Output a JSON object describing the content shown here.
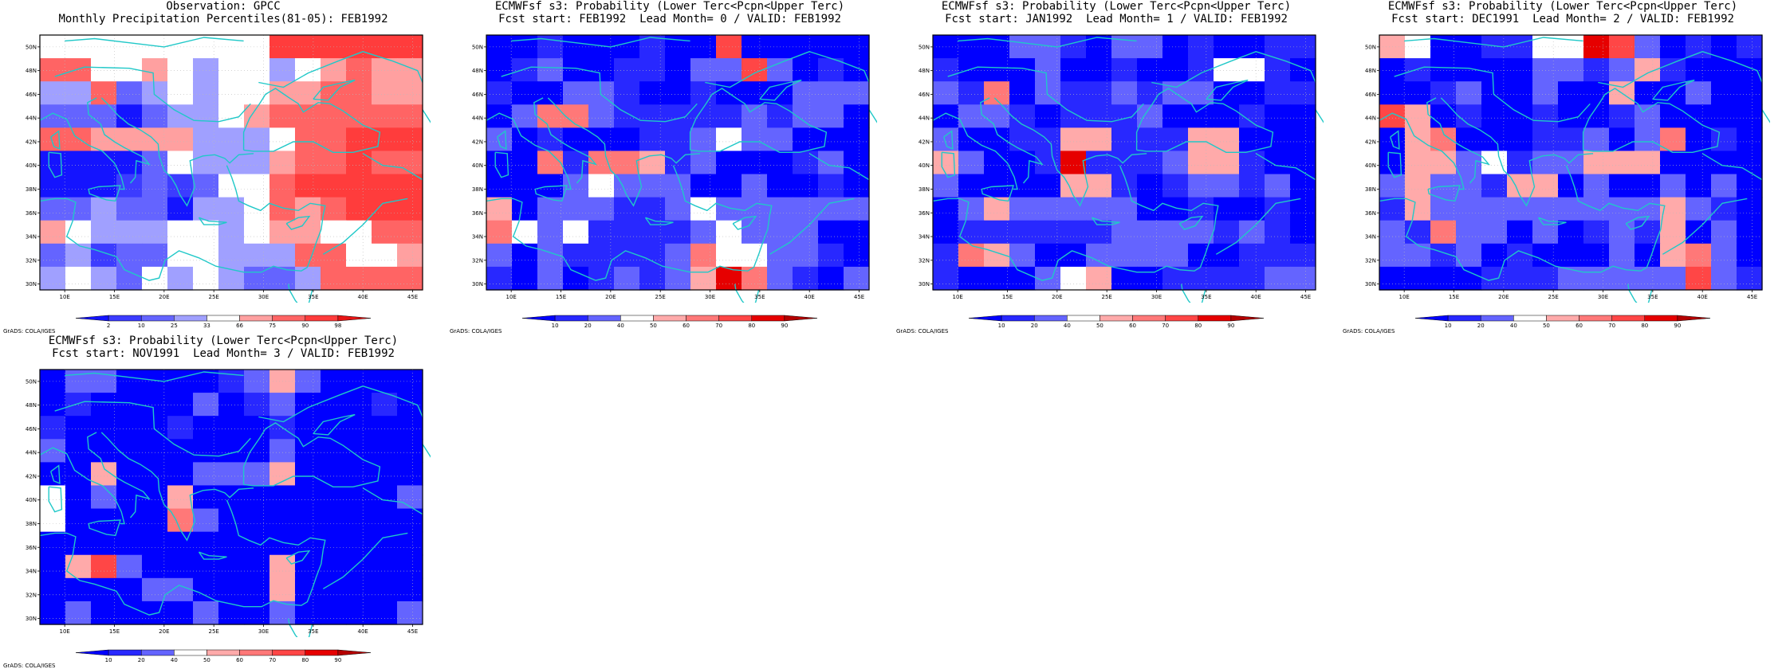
{
  "credit_text": "GrADS: COLA/IGES",
  "colors": {
    "coast": "#20c8c8",
    "grid": "#bbbbbb",
    "obs_palette": [
      "#1414ff",
      "#3c3cff",
      "#6464ff",
      "#a0a0ff",
      "#ffffff",
      "#ffa0a0",
      "#ff6464",
      "#ff3c3c",
      "#e61414"
    ],
    "prob_palette": [
      "#0000ff",
      "#2828ff",
      "#6464ff",
      "#ffffff",
      "#ffaaaa",
      "#ff7878",
      "#ff4646",
      "#e60000",
      "#b40000"
    ]
  },
  "chart_data": [
    {
      "type": "heatmap",
      "title_line1": "Observation: GPCC",
      "title_line2": "Monthly Precipitation Percentiles(81-05): FEB1992",
      "x_ticks": [
        "10E",
        "15E",
        "20E",
        "25E",
        "30E",
        "35E",
        "40E",
        "45E"
      ],
      "y_ticks": [
        "30N",
        "32N",
        "34N",
        "36N",
        "38N",
        "40N",
        "42N",
        "44N",
        "46N",
        "48N",
        "50N"
      ],
      "xlim": [
        7.5,
        46
      ],
      "ylim": [
        29.5,
        51
      ],
      "grid": true,
      "colorbar_ticks": [
        "2",
        "10",
        "25",
        "33",
        "66",
        "75",
        "90",
        "98"
      ],
      "palette": "obs",
      "grid_values": [
        [
          5,
          5,
          5,
          5,
          5,
          5,
          5,
          5,
          5,
          8,
          8,
          8,
          8,
          8,
          8
        ],
        [
          7,
          7,
          5,
          5,
          6,
          5,
          4,
          5,
          5,
          4,
          5,
          6,
          7,
          6,
          6
        ],
        [
          4,
          4,
          7,
          3,
          4,
          5,
          4,
          5,
          5,
          6,
          6,
          7,
          7,
          6,
          6
        ],
        [
          3,
          3,
          3,
          1,
          3,
          4,
          4,
          5,
          6,
          7,
          7,
          7,
          7,
          7,
          7
        ],
        [
          7,
          7,
          6,
          6,
          6,
          6,
          4,
          4,
          4,
          5,
          7,
          7,
          8,
          8,
          8
        ],
        [
          1,
          1,
          1,
          1,
          3,
          5,
          4,
          4,
          4,
          6,
          7,
          7,
          8,
          7,
          7
        ],
        [
          1,
          1,
          1,
          2,
          3,
          2,
          3,
          5,
          5,
          7,
          8,
          8,
          8,
          8,
          8
        ],
        [
          3,
          3,
          4,
          3,
          3,
          1,
          4,
          4,
          5,
          7,
          6,
          7,
          8,
          8,
          8
        ],
        [
          6,
          5,
          4,
          4,
          4,
          5,
          5,
          4,
          5,
          6,
          6,
          5,
          5,
          7,
          7
        ],
        [
          3,
          4,
          2,
          3,
          3,
          5,
          5,
          4,
          4,
          4,
          7,
          7,
          5,
          5,
          6
        ],
        [
          4,
          5,
          4,
          3,
          5,
          4,
          5,
          4,
          3,
          3,
          4,
          7,
          7,
          7,
          7
        ]
      ]
    },
    {
      "type": "heatmap",
      "title_line1": "ECMWFsf s3: Probability (Lower Terc<Pcpn<Upper Terc)",
      "title_line2": "Fcst start: FEB1992  Lead Month= 0 / VALID: FEB1992",
      "x_ticks": [
        "10E",
        "15E",
        "20E",
        "25E",
        "30E",
        "35E",
        "40E",
        "45E"
      ],
      "y_ticks": [
        "30N",
        "32N",
        "34N",
        "36N",
        "38N",
        "40N",
        "42N",
        "44N",
        "46N",
        "48N",
        "50N"
      ],
      "xlim": [
        7.5,
        46
      ],
      "ylim": [
        29.5,
        51
      ],
      "grid": true,
      "colorbar_ticks": [
        "10",
        "20",
        "40",
        "50",
        "60",
        "70",
        "80",
        "90"
      ],
      "palette": "prob",
      "grid_values": [
        [
          1,
          1,
          2,
          1,
          1,
          1,
          2,
          1,
          1,
          7,
          1,
          1,
          1,
          1,
          1
        ],
        [
          1,
          2,
          3,
          1,
          1,
          2,
          2,
          1,
          3,
          3,
          7,
          3,
          1,
          2,
          1
        ],
        [
          2,
          1,
          1,
          3,
          3,
          2,
          1,
          1,
          2,
          1,
          1,
          1,
          3,
          3,
          3
        ],
        [
          1,
          3,
          6,
          6,
          3,
          2,
          2,
          2,
          2,
          2,
          3,
          2,
          3,
          3,
          1
        ],
        [
          3,
          1,
          2,
          1,
          1,
          1,
          2,
          2,
          3,
          4,
          3,
          3,
          1,
          1,
          1
        ],
        [
          1,
          1,
          6,
          2,
          6,
          6,
          5,
          2,
          3,
          1,
          1,
          1,
          2,
          3,
          1
        ],
        [
          1,
          1,
          1,
          3,
          4,
          3,
          3,
          3,
          1,
          1,
          3,
          1,
          1,
          2,
          1
        ],
        [
          5,
          1,
          3,
          3,
          3,
          2,
          2,
          3,
          4,
          3,
          3,
          3,
          3,
          3,
          3
        ],
        [
          6,
          4,
          3,
          4,
          2,
          2,
          2,
          2,
          3,
          4,
          3,
          3,
          3,
          1,
          1
        ],
        [
          3,
          1,
          3,
          2,
          2,
          2,
          2,
          3,
          6,
          4,
          4,
          3,
          3,
          2,
          1
        ],
        [
          2,
          1,
          3,
          1,
          2,
          3,
          2,
          3,
          5,
          8,
          6,
          3,
          2,
          1,
          3
        ]
      ]
    },
    {
      "type": "heatmap",
      "title_line1": "ECMWFsf s3: Probability (Lower Terc<Pcpn<Upper Terc)",
      "title_line2": "Fcst start: JAN1992  Lead Month= 1 / VALID: FEB1992",
      "x_ticks": [
        "10E",
        "15E",
        "20E",
        "25E",
        "30E",
        "35E",
        "40E",
        "45E"
      ],
      "y_ticks": [
        "30N",
        "32N",
        "34N",
        "36N",
        "38N",
        "40N",
        "42N",
        "44N",
        "46N",
        "48N",
        "50N"
      ],
      "xlim": [
        7.5,
        46
      ],
      "ylim": [
        29.5,
        51
      ],
      "grid": true,
      "colorbar_ticks": [
        "10",
        "20",
        "40",
        "50",
        "60",
        "70",
        "80",
        "90"
      ],
      "palette": "prob",
      "grid_values": [
        [
          1,
          1,
          1,
          3,
          3,
          2,
          1,
          3,
          3,
          1,
          2,
          1,
          1,
          2,
          2
        ],
        [
          2,
          1,
          1,
          1,
          3,
          1,
          1,
          2,
          1,
          1,
          2,
          4,
          4,
          2,
          1
        ],
        [
          3,
          2,
          6,
          1,
          3,
          2,
          2,
          3,
          2,
          3,
          3,
          1,
          1,
          2,
          2
        ],
        [
          1,
          3,
          3,
          2,
          1,
          2,
          2,
          2,
          3,
          1,
          1,
          1,
          2,
          1,
          1
        ],
        [
          3,
          1,
          1,
          2,
          2,
          5,
          5,
          2,
          2,
          2,
          5,
          5,
          1,
          1,
          1
        ],
        [
          5,
          3,
          1,
          1,
          2,
          8,
          2,
          2,
          2,
          3,
          5,
          5,
          2,
          1,
          1
        ],
        [
          3,
          1,
          1,
          1,
          1,
          5,
          5,
          2,
          1,
          2,
          3,
          3,
          2,
          3,
          1
        ],
        [
          1,
          3,
          5,
          3,
          3,
          3,
          3,
          3,
          1,
          1,
          2,
          1,
          1,
          2,
          1
        ],
        [
          1,
          2,
          2,
          2,
          2,
          2,
          2,
          3,
          3,
          3,
          3,
          2,
          3,
          2,
          1
        ],
        [
          2,
          6,
          5,
          3,
          1,
          1,
          3,
          3,
          3,
          3,
          1,
          1,
          2,
          2,
          2
        ],
        [
          2,
          1,
          1,
          1,
          3,
          4,
          5,
          1,
          1,
          2,
          2,
          2,
          2,
          3,
          3
        ]
      ]
    },
    {
      "type": "heatmap",
      "title_line1": "ECMWFsf s3: Probability (Lower Terc<Pcpn<Upper Terc)",
      "title_line2": "Fcst start: DEC1991  Lead Month= 2 / VALID: FEB1992",
      "x_ticks": [
        "10E",
        "15E",
        "20E",
        "25E",
        "30E",
        "35E",
        "40E",
        "45E"
      ],
      "y_ticks": [
        "30N",
        "32N",
        "34N",
        "36N",
        "38N",
        "40N",
        "42N",
        "44N",
        "46N",
        "48N",
        "50N"
      ],
      "xlim": [
        7.5,
        46
      ],
      "ylim": [
        29.5,
        51
      ],
      "grid": true,
      "colorbar_ticks": [
        "10",
        "20",
        "40",
        "50",
        "60",
        "70",
        "80",
        "90"
      ],
      "palette": "prob",
      "grid_values": [
        [
          5,
          4,
          1,
          1,
          2,
          2,
          4,
          4,
          8,
          7,
          3,
          1,
          2,
          1,
          2
        ],
        [
          1,
          2,
          1,
          1,
          1,
          1,
          3,
          3,
          2,
          3,
          5,
          2,
          1,
          1,
          1
        ],
        [
          1,
          1,
          2,
          3,
          1,
          1,
          3,
          1,
          1,
          5,
          1,
          1,
          3,
          1,
          1
        ],
        [
          7,
          5,
          1,
          2,
          1,
          1,
          2,
          1,
          1,
          2,
          3,
          1,
          1,
          1,
          1
        ],
        [
          1,
          5,
          6,
          1,
          1,
          1,
          2,
          2,
          3,
          1,
          3,
          6,
          1,
          2,
          1
        ],
        [
          1,
          5,
          5,
          3,
          4,
          2,
          3,
          3,
          5,
          5,
          5,
          1,
          1,
          1,
          1
        ],
        [
          3,
          5,
          3,
          3,
          2,
          5,
          5,
          1,
          3,
          1,
          1,
          3,
          1,
          3,
          1
        ],
        [
          2,
          5,
          3,
          3,
          3,
          3,
          3,
          3,
          3,
          3,
          3,
          5,
          3,
          2,
          1
        ],
        [
          3,
          2,
          6,
          3,
          3,
          1,
          3,
          1,
          2,
          3,
          2,
          5,
          1,
          3,
          1
        ],
        [
          3,
          3,
          2,
          3,
          1,
          2,
          1,
          1,
          1,
          3,
          1,
          5,
          6,
          3,
          1
        ],
        [
          1,
          1,
          1,
          1,
          2,
          2,
          2,
          3,
          3,
          3,
          3,
          3,
          7,
          3,
          2
        ]
      ]
    },
    {
      "type": "heatmap",
      "title_line1": "ECMWFsf s3: Probability (Lower Terc<Pcpn<Upper Terc)",
      "title_line2": "Fcst start: NOV1991  Lead Month= 3 / VALID: FEB1992",
      "x_ticks": [
        "10E",
        "15E",
        "20E",
        "25E",
        "30E",
        "35E",
        "40E",
        "45E"
      ],
      "y_ticks": [
        "30N",
        "32N",
        "34N",
        "36N",
        "38N",
        "40N",
        "42N",
        "44N",
        "46N",
        "48N",
        "50N"
      ],
      "xlim": [
        7.5,
        46
      ],
      "ylim": [
        29.5,
        51
      ],
      "grid": true,
      "colorbar_ticks": [
        "10",
        "20",
        "40",
        "50",
        "60",
        "70",
        "80",
        "90"
      ],
      "palette": "prob",
      "grid_values": [
        [
          1,
          3,
          3,
          1,
          1,
          1,
          1,
          2,
          3,
          5,
          3,
          1,
          1,
          1,
          1
        ],
        [
          1,
          2,
          1,
          1,
          1,
          1,
          3,
          1,
          2,
          3,
          1,
          1,
          1,
          2,
          1
        ],
        [
          2,
          1,
          1,
          1,
          1,
          2,
          1,
          1,
          1,
          2,
          1,
          1,
          1,
          1,
          1
        ],
        [
          3,
          1,
          1,
          1,
          1,
          1,
          1,
          1,
          1,
          3,
          1,
          1,
          1,
          1,
          1
        ],
        [
          1,
          1,
          5,
          1,
          1,
          1,
          3,
          3,
          3,
          5,
          1,
          1,
          1,
          1,
          1
        ],
        [
          4,
          1,
          3,
          1,
          1,
          5,
          1,
          1,
          1,
          1,
          1,
          1,
          1,
          1,
          3
        ],
        [
          4,
          1,
          1,
          1,
          1,
          6,
          3,
          1,
          1,
          1,
          1,
          1,
          1,
          1,
          1
        ],
        [
          1,
          1,
          1,
          1,
          1,
          1,
          1,
          1,
          1,
          1,
          1,
          1,
          1,
          1,
          1
        ],
        [
          1,
          5,
          7,
          3,
          1,
          1,
          1,
          1,
          1,
          5,
          1,
          1,
          1,
          1,
          1
        ],
        [
          1,
          1,
          1,
          1,
          3,
          3,
          1,
          1,
          1,
          5,
          1,
          1,
          1,
          1,
          1
        ],
        [
          1,
          3,
          1,
          1,
          1,
          1,
          3,
          1,
          1,
          3,
          1,
          1,
          1,
          1,
          3
        ]
      ]
    }
  ]
}
